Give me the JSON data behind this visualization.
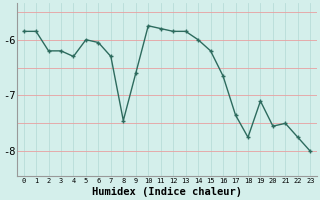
{
  "x": [
    0,
    1,
    2,
    3,
    4,
    5,
    6,
    7,
    8,
    9,
    10,
    11,
    12,
    13,
    14,
    15,
    16,
    17,
    18,
    19,
    20,
    21,
    22,
    23
  ],
  "y": [
    -5.85,
    -5.85,
    -6.2,
    -6.2,
    -6.3,
    -6.0,
    -6.05,
    -6.3,
    -7.45,
    -6.6,
    -5.75,
    -5.8,
    -5.85,
    -5.85,
    -6.0,
    -6.2,
    -6.65,
    -7.35,
    -7.75,
    -7.1,
    -7.55,
    -7.5,
    -7.75,
    -8.0
  ],
  "xlabel": "Humidex (Indice chaleur)",
  "yticks": [
    -6,
    -7,
    -8
  ],
  "ylim": [
    -8.45,
    -5.35
  ],
  "xlim": [
    -0.5,
    23.5
  ],
  "line_color": "#2d6b5e",
  "bg_color": "#d4efeb",
  "grid_color_v": "#b8ddd8",
  "grid_color_h": "#e8a0a0",
  "marker": "+"
}
